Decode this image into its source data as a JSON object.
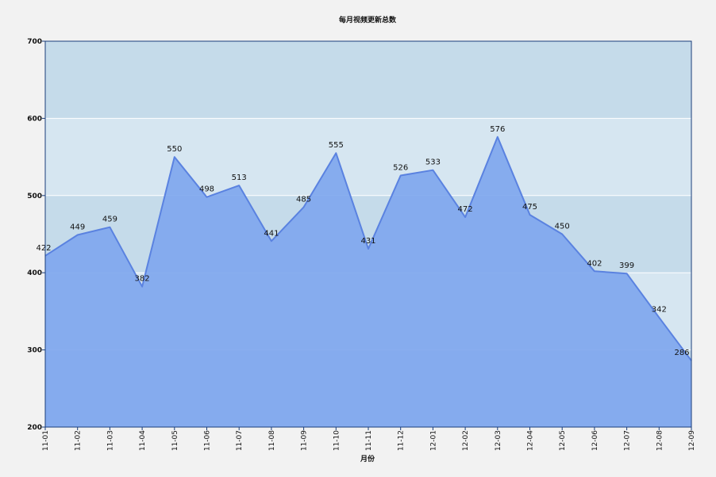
{
  "chart_data": {
    "type": "area",
    "title": "每月视频更新总数",
    "xlabel": "月份",
    "ylabel": "",
    "ylim": [
      200,
      700
    ],
    "yticks": [
      200,
      300,
      400,
      500,
      600,
      700
    ],
    "grid": true,
    "legend": "none",
    "categories": [
      "11-01",
      "11-02",
      "11-03",
      "11-04",
      "11-05",
      "11-06",
      "11-07",
      "11-08",
      "11-09",
      "11-10",
      "11-11",
      "11-12",
      "12-01",
      "12-02",
      "12-03",
      "12-04",
      "12-05",
      "12-06",
      "12-07",
      "12-08",
      "12-09"
    ],
    "series": [
      {
        "values": [
          422,
          449,
          459,
          382,
          550,
          498,
          513,
          441,
          485,
          555,
          431,
          526,
          533,
          472,
          576,
          475,
          450,
          402,
          399,
          342,
          286
        ],
        "fill_color": "#7fa7ee",
        "line_color": "#5a82e0"
      }
    ],
    "band_colors": [
      "#c5dbea",
      "#d6e6f1"
    ],
    "frame_color": "#1a3d7a"
  }
}
